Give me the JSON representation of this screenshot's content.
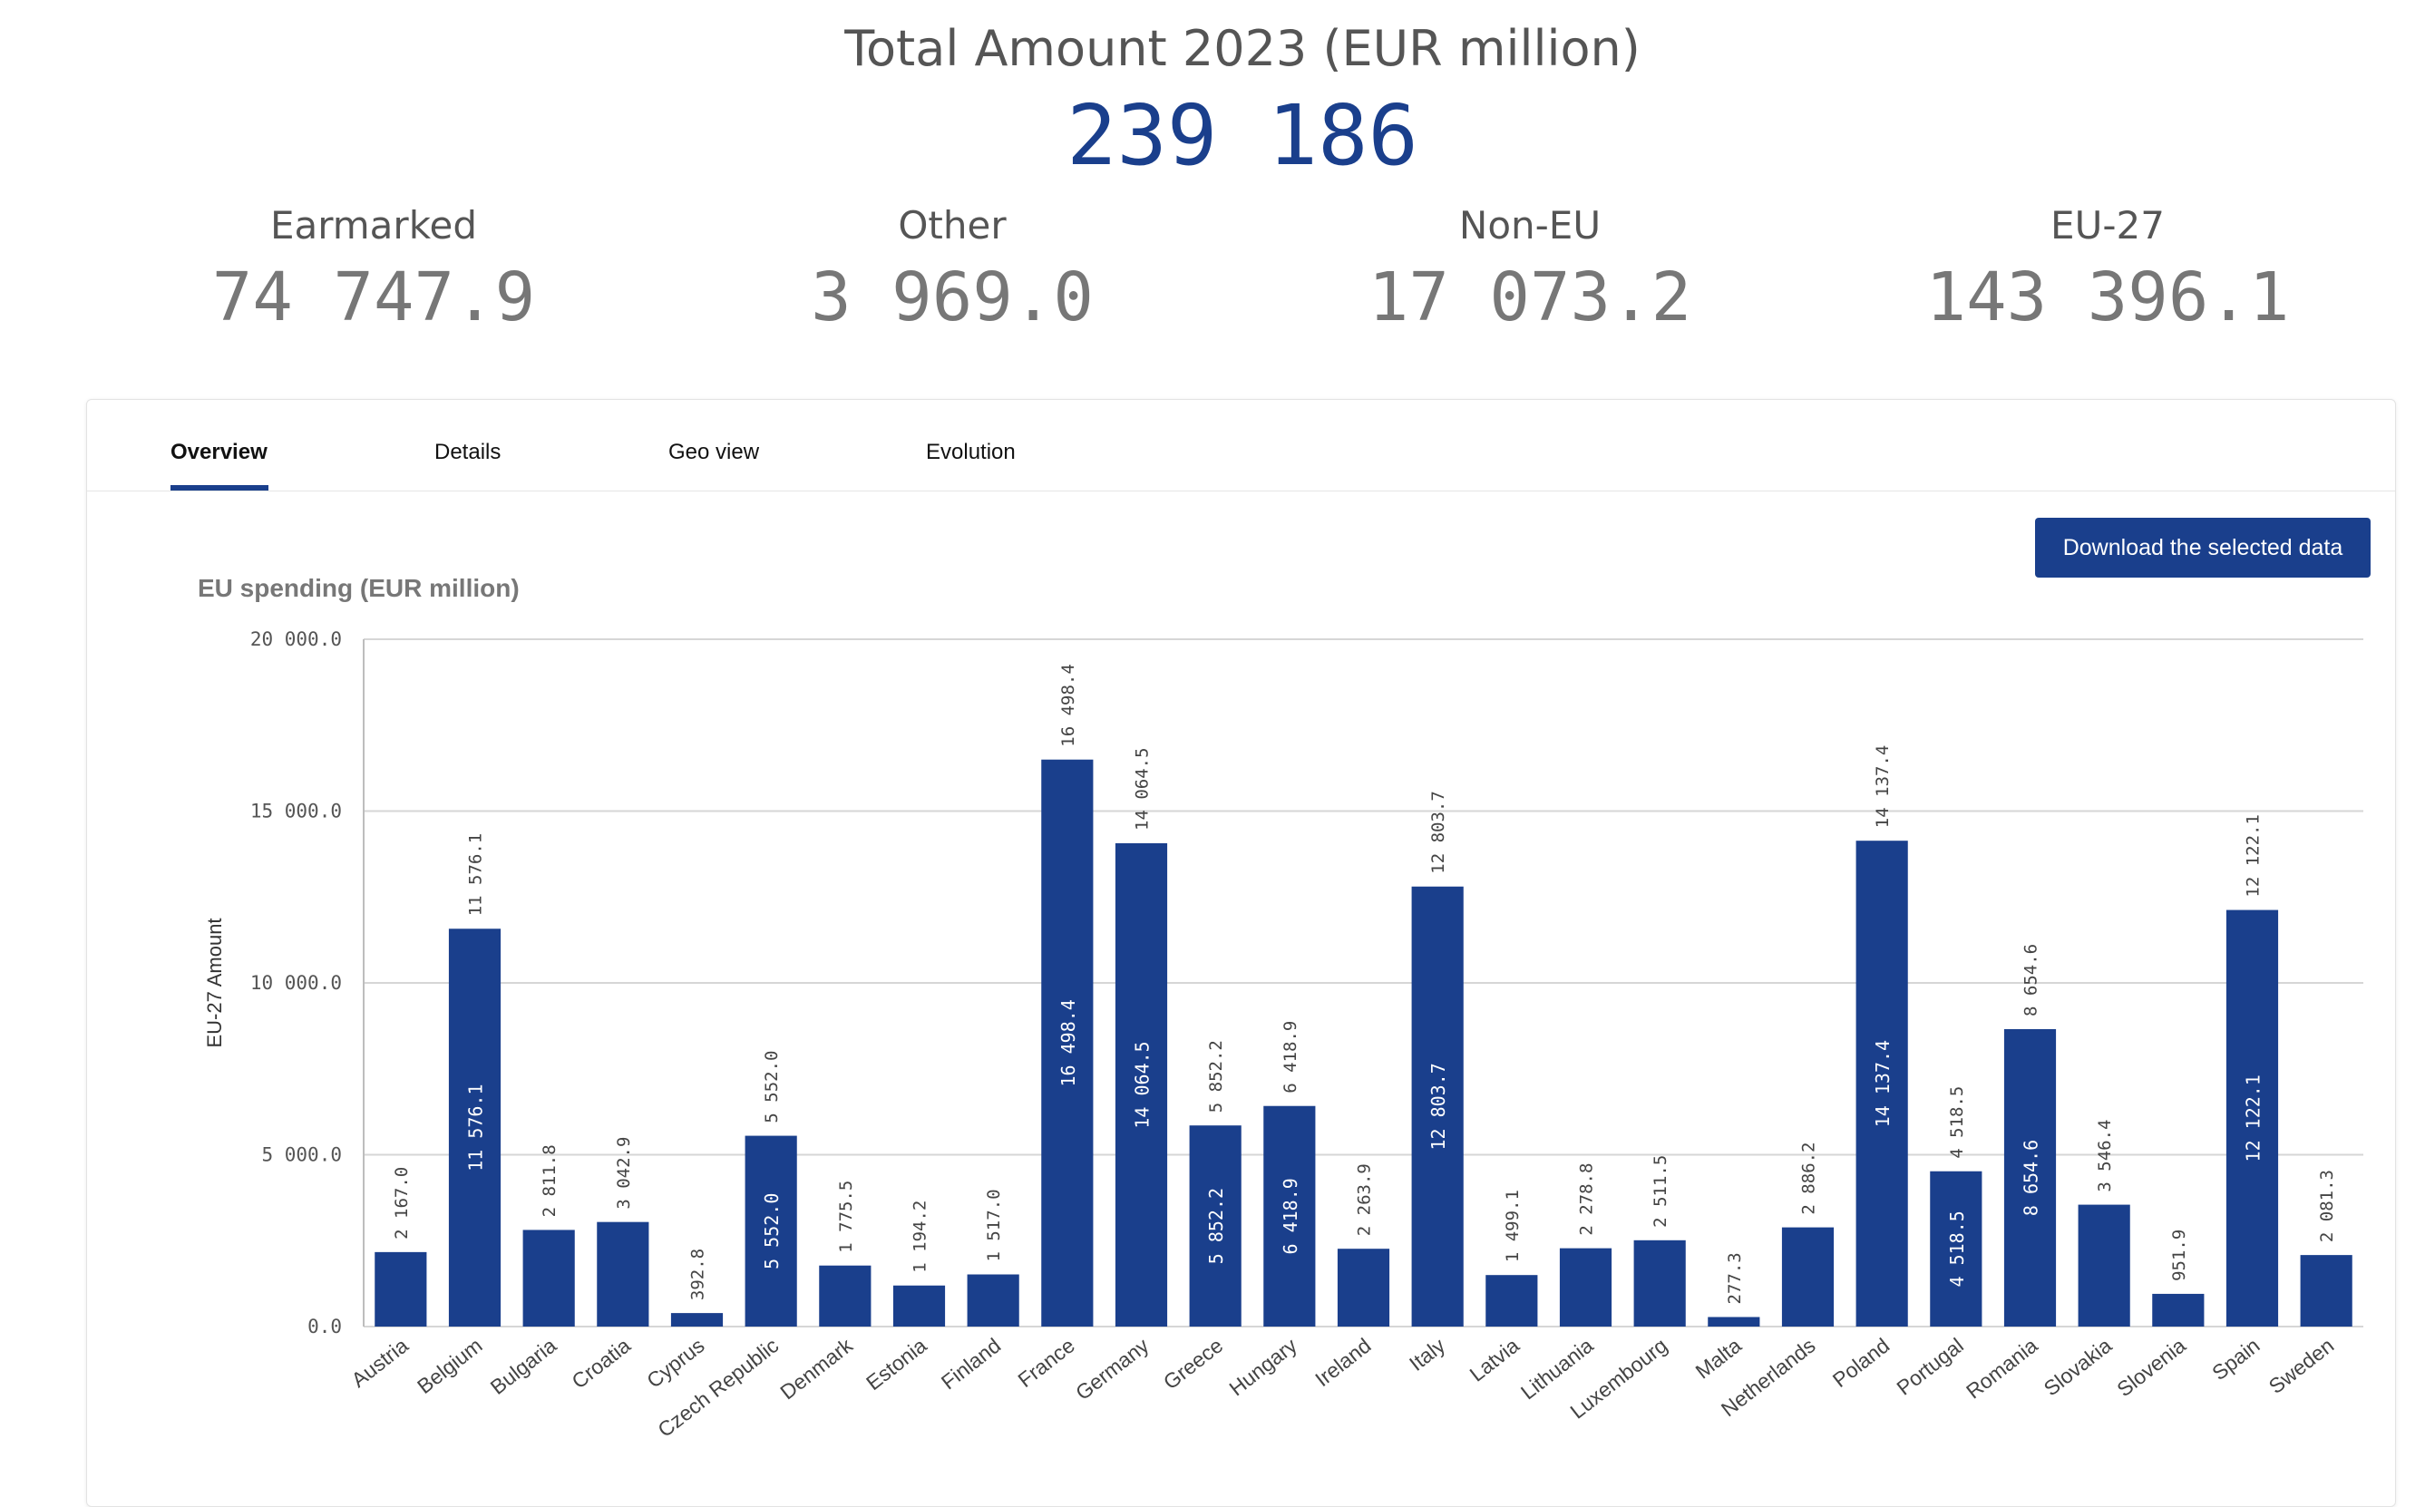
{
  "header": {
    "title": "Total Amount 2023 (EUR million)",
    "total": "239 186",
    "kpis": [
      {
        "label": "Earmarked",
        "value": "74 747.9"
      },
      {
        "label": "Other",
        "value": "3 969.0"
      },
      {
        "label": "Non-EU",
        "value": "17 073.2"
      },
      {
        "label": "EU-27",
        "value": "143 396.1"
      }
    ]
  },
  "tabs": [
    {
      "label": "Overview",
      "active": true
    },
    {
      "label": "Details",
      "active": false
    },
    {
      "label": "Geo view",
      "active": false
    },
    {
      "label": "Evolution",
      "active": false
    }
  ],
  "download_label": "Download the selected data",
  "colors": {
    "bar": "#1a3f8c",
    "accent": "#1a3f8c"
  },
  "chart_data": {
    "type": "bar",
    "title": "EU spending (EUR million)",
    "ylabel": "EU-27 Amount",
    "xlabel": "",
    "ylim": [
      0,
      20000
    ],
    "yticks": [
      0,
      5000,
      10000,
      15000,
      20000
    ],
    "ytick_labels": [
      "0.0",
      "5 000.0",
      "10 000.0",
      "15 000.0",
      "20 000.0"
    ],
    "grid": true,
    "categories": [
      "Austria",
      "Belgium",
      "Bulgaria",
      "Croatia",
      "Cyprus",
      "Czech Republic",
      "Denmark",
      "Estonia",
      "Finland",
      "France",
      "Germany",
      "Greece",
      "Hungary",
      "Ireland",
      "Italy",
      "Latvia",
      "Lithuania",
      "Luxembourg",
      "Malta",
      "Netherlands",
      "Poland",
      "Portugal",
      "Romania",
      "Slovakia",
      "Slovenia",
      "Spain",
      "Sweden"
    ],
    "values": [
      2167.0,
      11576.1,
      2811.8,
      3042.9,
      392.8,
      5552.0,
      1775.5,
      1194.2,
      1517.0,
      16498.4,
      14064.5,
      5852.2,
      6418.9,
      2263.9,
      12803.7,
      1499.1,
      2278.8,
      2511.5,
      277.3,
      2886.2,
      14137.4,
      4518.5,
      8654.6,
      3546.4,
      951.9,
      12122.1,
      2081.3
    ],
    "value_labels": [
      "2 167.0",
      "11 576.1",
      "2 811.8",
      "3 042.9",
      "392.8",
      "5 552.0",
      "1 775.5",
      "1 194.2",
      "1 517.0",
      "16 498.4",
      "14 064.5",
      "5 852.2",
      "6 418.9",
      "2 263.9",
      "12 803.7",
      "1 499.1",
      "2 278.8",
      "2 511.5",
      "277.3",
      "2 886.2",
      "14 137.4",
      "4 518.5",
      "8 654.6",
      "3 546.4",
      "951.9",
      "12 122.1",
      "2 081.3"
    ]
  }
}
